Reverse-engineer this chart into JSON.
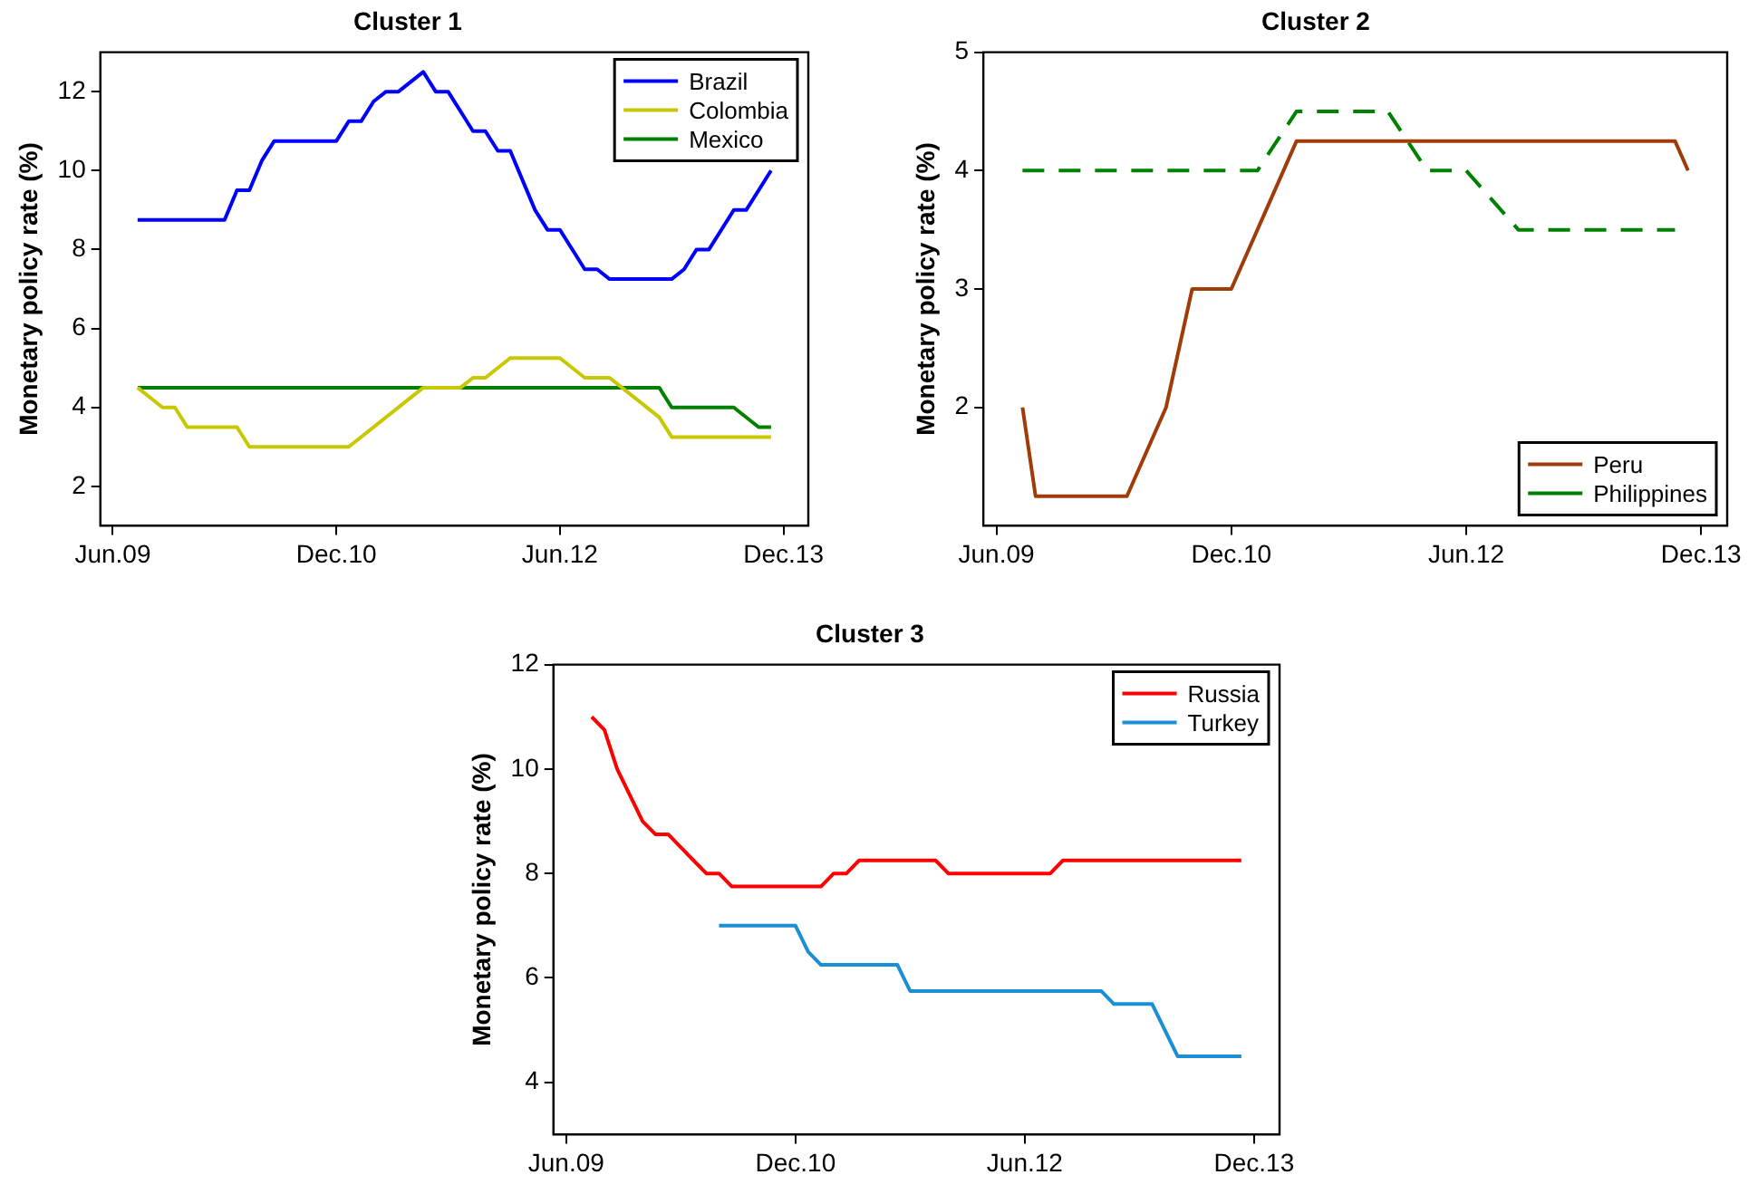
{
  "chart_data": [
    {
      "type": "line",
      "title": "Cluster 1",
      "ylabel": "Monetary policy rate (%)",
      "xlim": [
        "2009-05",
        "2014-02"
      ],
      "xticks": [
        {
          "value": "2009-06",
          "label": "Jun.09"
        },
        {
          "value": "2010-12",
          "label": "Dec.10"
        },
        {
          "value": "2012-06",
          "label": "Jun.12"
        },
        {
          "value": "2013-12",
          "label": "Dec.13"
        }
      ],
      "ylim": [
        1,
        13
      ],
      "yticks": [
        2,
        4,
        6,
        8,
        10,
        12
      ],
      "legend": "top right",
      "series": [
        {
          "name": "Brazil",
          "color": "#0000ff",
          "x": [
            "2009-08",
            "2010-03",
            "2010-04",
            "2010-05",
            "2010-06",
            "2010-07",
            "2010-12",
            "2011-01",
            "2011-02",
            "2011-03",
            "2011-04",
            "2011-05",
            "2011-07",
            "2011-08",
            "2011-09",
            "2011-11",
            "2011-12",
            "2012-01",
            "2012-02",
            "2012-04",
            "2012-05",
            "2012-06",
            "2012-08",
            "2012-09",
            "2012-10",
            "2013-03",
            "2013-04",
            "2013-05",
            "2013-06",
            "2013-08",
            "2013-09",
            "2013-11"
          ],
          "values": [
            8.75,
            8.75,
            9.5,
            9.5,
            10.25,
            10.75,
            10.75,
            11.25,
            11.25,
            11.75,
            12,
            12,
            12.5,
            12,
            12,
            11,
            11,
            10.5,
            10.5,
            9,
            8.5,
            8.5,
            7.5,
            7.5,
            7.25,
            7.25,
            7.5,
            8,
            8,
            9,
            9,
            10
          ]
        },
        {
          "name": "Colombia",
          "color": "#c8c800",
          "x": [
            "2009-08",
            "2009-09",
            "2009-10",
            "2009-11",
            "2009-12",
            "2010-03",
            "2010-04",
            "2010-05",
            "2011-01",
            "2011-07",
            "2011-10",
            "2011-11",
            "2011-12",
            "2012-02",
            "2012-06",
            "2012-08",
            "2012-10",
            "2013-02",
            "2013-03",
            "2013-11"
          ],
          "values": [
            4.5,
            4.25,
            4,
            4,
            3.5,
            3.5,
            3.5,
            3,
            3,
            4.5,
            4.5,
            4.75,
            4.75,
            5.25,
            5.25,
            4.75,
            4.75,
            3.75,
            3.25,
            3.25
          ]
        },
        {
          "name": "Mexico",
          "color": "#008000",
          "x": [
            "2009-08",
            "2013-02",
            "2013-03",
            "2013-08",
            "2013-10",
            "2013-11"
          ],
          "values": [
            4.5,
            4.5,
            4,
            4,
            3.5,
            3.5
          ]
        }
      ]
    },
    {
      "type": "line",
      "title": "Cluster 2",
      "ylabel": "Monetary policy rate (%)",
      "xlim": [
        "2009-05",
        "2014-02"
      ],
      "xticks": [
        {
          "value": "2009-06",
          "label": "Jun.09"
        },
        {
          "value": "2010-12",
          "label": "Dec.10"
        },
        {
          "value": "2012-06",
          "label": "Jun.12"
        },
        {
          "value": "2013-12",
          "label": "Dec.13"
        }
      ],
      "ylim": [
        1,
        5
      ],
      "yticks": [
        2,
        3,
        4,
        5
      ],
      "legend": "bottom right",
      "series": [
        {
          "name": "Peru",
          "color": "#a03c0a",
          "x": [
            "2009-08",
            "2009-09",
            "2010-04",
            "2010-07",
            "2010-09",
            "2010-12",
            "2011-02",
            "2011-05",
            "2013-10",
            "2013-11"
          ],
          "values": [
            2,
            1.25,
            1.25,
            2,
            3,
            3,
            3.5,
            4.25,
            4.25,
            4
          ]
        },
        {
          "name": "Philippines",
          "color": "#008000",
          "line_style": "dashed",
          "x": [
            "2009-08",
            "2011-02",
            "2011-05",
            "2011-12",
            "2012-03",
            "2012-06",
            "2012-10",
            "2013-10"
          ],
          "values": [
            4,
            4,
            4.5,
            4.5,
            4,
            4,
            3.5,
            3.5
          ]
        }
      ]
    },
    {
      "type": "line",
      "title": "Cluster 3",
      "ylabel": "Monetary policy rate (%)",
      "xlim": [
        "2009-05",
        "2014-02"
      ],
      "xticks": [
        {
          "value": "2009-06",
          "label": "Jun.09"
        },
        {
          "value": "2010-12",
          "label": "Dec.10"
        },
        {
          "value": "2012-06",
          "label": "Jun.12"
        },
        {
          "value": "2013-12",
          "label": "Dec.13"
        }
      ],
      "ylim": [
        3,
        12
      ],
      "yticks": [
        4,
        6,
        8,
        10,
        12
      ],
      "legend": "top right",
      "series": [
        {
          "name": "Russia",
          "color": "#ff0000",
          "x": [
            "2009-08",
            "2009-09",
            "2009-10",
            "2009-12",
            "2010-01",
            "2010-02",
            "2010-05",
            "2010-06",
            "2010-07",
            "2011-02",
            "2011-03",
            "2011-04",
            "2011-05",
            "2011-11",
            "2011-12",
            "2012-08",
            "2012-09",
            "2013-11"
          ],
          "values": [
            11,
            10.75,
            10,
            9,
            8.75,
            8.75,
            8,
            8,
            7.75,
            7.75,
            8,
            8,
            8.25,
            8.25,
            8,
            8,
            8.25,
            8.25
          ]
        },
        {
          "name": "Turkey",
          "color": "#1b8fd6",
          "x": [
            "2010-06",
            "2010-12",
            "2011-01",
            "2011-02",
            "2011-08",
            "2011-09",
            "2012-12",
            "2013-01",
            "2013-04",
            "2013-06",
            "2013-11"
          ],
          "values": [
            7,
            7,
            6.5,
            6.25,
            6.25,
            5.75,
            5.75,
            5.5,
            5.5,
            4.5,
            4.5
          ]
        }
      ]
    }
  ]
}
